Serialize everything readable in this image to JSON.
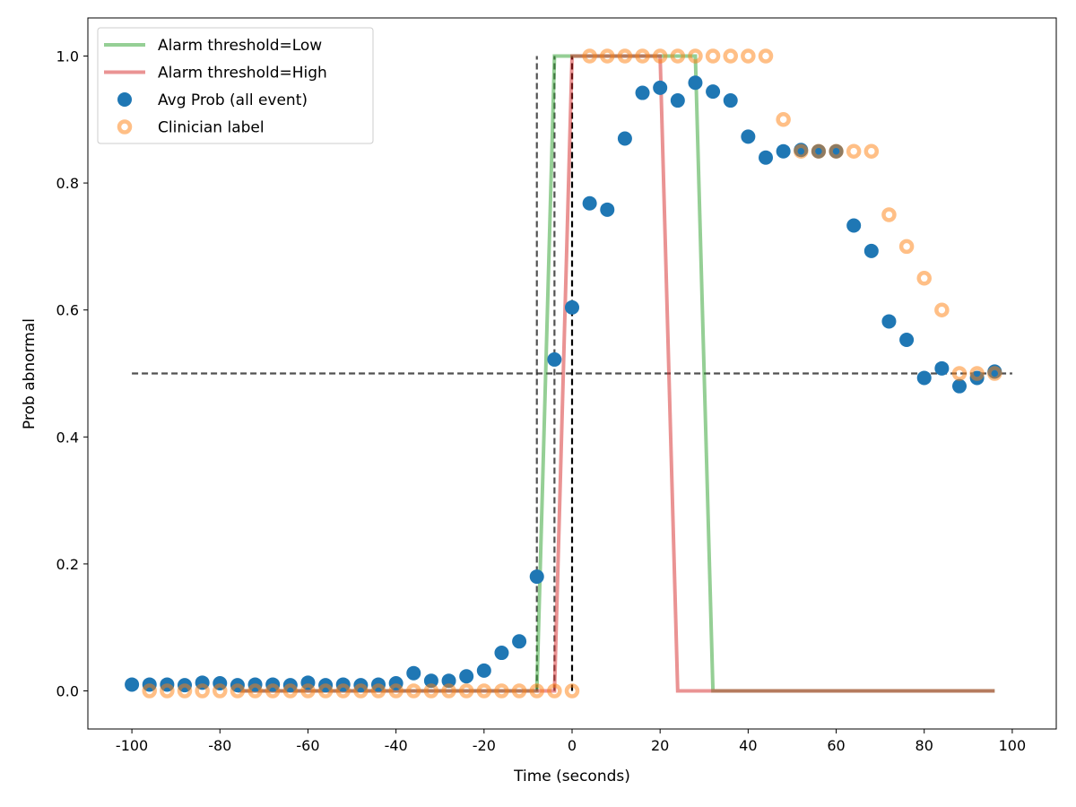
{
  "chart_data": {
    "type": "scatter",
    "title": "",
    "xlabel": "Time (seconds)",
    "ylabel": "Prob abnormal",
    "xlim": [
      -110,
      110
    ],
    "ylim": [
      -0.06,
      1.06
    ],
    "x_ticks": [
      -100,
      -80,
      -60,
      -40,
      -20,
      0,
      20,
      40,
      60,
      80,
      100
    ],
    "y_ticks": [
      0.0,
      0.2,
      0.4,
      0.6,
      0.8,
      1.0
    ],
    "grid": false,
    "legend_position": "top-left",
    "legend": [
      {
        "label": "Alarm threshold=Low",
        "kind": "line",
        "color": "#2ca02c"
      },
      {
        "label": "Alarm threshold=High",
        "kind": "line",
        "color": "#d62728"
      },
      {
        "label": "Avg Prob (all event)",
        "kind": "dot",
        "color": "#1f77b4"
      },
      {
        "label": "Clinician label",
        "kind": "ring",
        "color": "#ff7f0e"
      }
    ],
    "series": [
      {
        "name": "Alarm threshold=Low",
        "kind": "line",
        "color": "#2ca02c",
        "opacity": 0.5,
        "points": [
          [
            -76,
            0
          ],
          [
            -8,
            0
          ],
          [
            -4,
            1
          ],
          [
            28,
            1
          ],
          [
            32,
            0
          ],
          [
            96,
            0
          ]
        ]
      },
      {
        "name": "Alarm threshold=High",
        "kind": "line",
        "color": "#d62728",
        "opacity": 0.5,
        "points": [
          [
            -76,
            0
          ],
          [
            -4,
            0
          ],
          [
            0,
            1
          ],
          [
            20,
            1
          ],
          [
            24,
            0
          ],
          [
            96,
            0
          ]
        ]
      },
      {
        "name": "Avg Prob (all event)",
        "kind": "dot",
        "color": "#1f77b4",
        "x": [
          -100,
          -96,
          -92,
          -88,
          -84,
          -80,
          -76,
          -72,
          -68,
          -64,
          -60,
          -56,
          -52,
          -48,
          -44,
          -40,
          -36,
          -32,
          -28,
          -24,
          -20,
          -16,
          -12,
          -8,
          -4,
          0,
          4,
          8,
          12,
          16,
          20,
          24,
          28,
          32,
          36,
          40,
          44,
          48,
          52,
          56,
          60,
          64,
          68,
          72,
          76,
          80,
          84,
          88,
          92,
          96
        ],
        "y": [
          0.01,
          0.01,
          0.01,
          0.009,
          0.013,
          0.012,
          0.009,
          0.01,
          0.01,
          0.009,
          0.013,
          0.009,
          0.01,
          0.009,
          0.01,
          0.012,
          0.028,
          0.016,
          0.016,
          0.023,
          0.032,
          0.06,
          0.078,
          0.18,
          0.522,
          0.604,
          0.768,
          0.758,
          0.87,
          0.942,
          0.95,
          0.93,
          0.958,
          0.944,
          0.93,
          0.873,
          0.84,
          0.85,
          0.852,
          0.85,
          0.85,
          0.733,
          0.693,
          0.582,
          0.553,
          0.493,
          0.508,
          0.48,
          0.493,
          0.503
        ]
      },
      {
        "name": "Clinician label",
        "kind": "ring",
        "color": "#ff7f0e",
        "x": [
          -96,
          -92,
          -88,
          -84,
          -80,
          -76,
          -72,
          -68,
          -64,
          -60,
          -56,
          -52,
          -48,
          -44,
          -40,
          -36,
          -32,
          -28,
          -24,
          -20,
          -16,
          -12,
          -8,
          -4,
          0,
          4,
          8,
          12,
          16,
          20,
          24,
          28,
          32,
          36,
          40,
          44,
          48,
          52,
          56,
          60,
          64,
          68,
          72,
          76,
          80,
          84,
          88,
          92,
          96
        ],
        "y": [
          0,
          0,
          0,
          0,
          0,
          0,
          0,
          0,
          0,
          0,
          0,
          0,
          0,
          0,
          0,
          0,
          0,
          0,
          0,
          0,
          0,
          0,
          0,
          0,
          0,
          1,
          1,
          1,
          1,
          1,
          1,
          1,
          1,
          1,
          1,
          1,
          0.9,
          0.85,
          0.85,
          0.85,
          0.85,
          0.85,
          0.75,
          0.7,
          0.65,
          0.6,
          0.5,
          0.5,
          0.5
        ]
      }
    ],
    "reference_lines": [
      {
        "orientation": "horizontal",
        "y": 0.5,
        "x_from": -100,
        "x_to": 100,
        "color": "#333333",
        "style": "dashed"
      },
      {
        "orientation": "vertical",
        "x": -8,
        "y_from": 0,
        "y_to": 1,
        "color": "#333333",
        "style": "dashed"
      },
      {
        "orientation": "vertical",
        "x": -4,
        "y_from": 0,
        "y_to": 1,
        "color": "#333333",
        "style": "dashed"
      },
      {
        "orientation": "vertical",
        "x": 0,
        "y_from": 0,
        "y_to": 1,
        "color": "#000000",
        "style": "dashed"
      }
    ]
  }
}
